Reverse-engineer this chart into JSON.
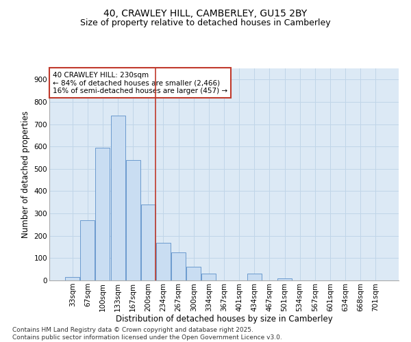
{
  "title1": "40, CRAWLEY HILL, CAMBERLEY, GU15 2BY",
  "title2": "Size of property relative to detached houses in Camberley",
  "xlabel": "Distribution of detached houses by size in Camberley",
  "ylabel": "Number of detached properties",
  "categories": [
    "33sqm",
    "67sqm",
    "100sqm",
    "133sqm",
    "167sqm",
    "200sqm",
    "234sqm",
    "267sqm",
    "300sqm",
    "334sqm",
    "367sqm",
    "401sqm",
    "434sqm",
    "467sqm",
    "501sqm",
    "534sqm",
    "567sqm",
    "601sqm",
    "634sqm",
    "668sqm",
    "701sqm"
  ],
  "values": [
    15,
    270,
    595,
    740,
    540,
    340,
    170,
    125,
    60,
    30,
    0,
    0,
    30,
    0,
    8,
    0,
    0,
    0,
    0,
    0,
    0
  ],
  "bar_color": "#c9ddf2",
  "bar_edge_color": "#5b8fc9",
  "vline_color": "#c0392b",
  "vline_pos": 5.47,
  "annotation_text": "40 CRAWLEY HILL: 230sqm\n← 84% of detached houses are smaller (2,466)\n16% of semi-detached houses are larger (457) →",
  "annotation_box_color": "#c0392b",
  "ylim": [
    0,
    950
  ],
  "yticks": [
    0,
    100,
    200,
    300,
    400,
    500,
    600,
    700,
    800,
    900
  ],
  "grid_color": "#c0d5e8",
  "bg_color": "#dce9f5",
  "footer": "Contains HM Land Registry data © Crown copyright and database right 2025.\nContains public sector information licensed under the Open Government Licence v3.0.",
  "title_fontsize": 10,
  "subtitle_fontsize": 9,
  "axis_label_fontsize": 8.5,
  "tick_fontsize": 7.5,
  "annotation_fontsize": 7.5,
  "footer_fontsize": 6.5
}
